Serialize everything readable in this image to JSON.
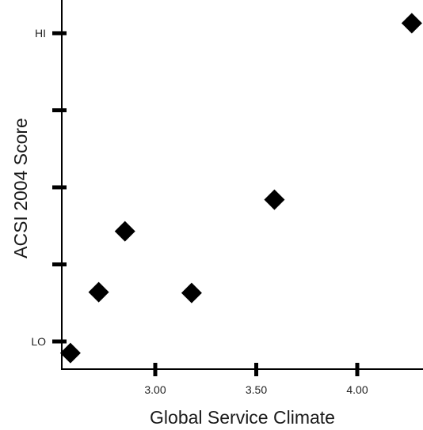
{
  "chart_data": {
    "type": "scatter",
    "title": "",
    "xlabel": "Global Service Climate",
    "ylabel": "ACSI 2004 Score",
    "xlim": [
      2.48,
      4.3
    ],
    "ylim": [
      0,
      4
    ],
    "x_ticks": [
      {
        "value": 3.0,
        "label": "3.00"
      },
      {
        "value": 3.5,
        "label": "3.50"
      },
      {
        "value": 4.0,
        "label": "4.00"
      }
    ],
    "y_ticks": [
      {
        "value": 0,
        "label": "LO"
      },
      {
        "value": 1,
        "label": ""
      },
      {
        "value": 2,
        "label": ""
      },
      {
        "value": 3,
        "label": ""
      },
      {
        "value": 4,
        "label": "HI"
      }
    ],
    "marker": "diamond",
    "grid": false,
    "points": [
      {
        "x": 2.58,
        "y": -0.15
      },
      {
        "x": 2.72,
        "y": 0.64
      },
      {
        "x": 2.85,
        "y": 1.43
      },
      {
        "x": 3.18,
        "y": 0.63
      },
      {
        "x": 3.59,
        "y": 1.84
      },
      {
        "x": 4.27,
        "y": 4.13
      }
    ]
  }
}
